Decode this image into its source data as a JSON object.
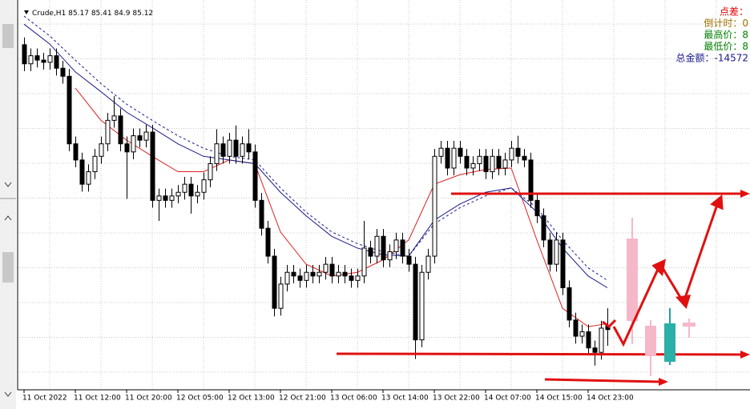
{
  "chart_data": {
    "type": "candlestick",
    "symbol": "Crude,H1",
    "ylim": [
      84.3,
      89.5
    ],
    "grid": true,
    "up_color": "#ffffff",
    "down_color": "#000000",
    "categories": [
      "11 Oct 2022",
      null,
      null,
      null,
      null,
      null,
      null,
      null,
      "11 Oct 12:00",
      null,
      null,
      null,
      null,
      null,
      null,
      null,
      "11 Oct 20:00",
      null,
      null,
      null,
      null,
      null,
      null,
      null,
      "12 Oct 05:00",
      null,
      null,
      null,
      null,
      null,
      null,
      null,
      "12 Oct 13:00",
      null,
      null,
      null,
      null,
      null,
      null,
      null,
      "12 Oct 21:00",
      null,
      null,
      null,
      null,
      null,
      null,
      null,
      "13 Oct 06:00",
      null,
      null,
      null,
      null,
      null,
      null,
      null,
      "13 Oct 14:00",
      null,
      null,
      null,
      null,
      null,
      null,
      null,
      "13 Oct 22:00",
      null,
      null,
      null,
      null,
      null,
      null,
      null,
      "14 Oct 07:00",
      null,
      null,
      null,
      null,
      null,
      null,
      null,
      "14 Oct 15:00",
      null,
      null,
      null,
      null,
      null,
      null,
      null,
      "14 Oct 23:00",
      null,
      null,
      null
    ],
    "ohlc": [
      [
        89.0,
        89.1,
        88.64,
        88.74
      ],
      [
        88.74,
        88.95,
        88.64,
        88.85
      ],
      [
        88.85,
        88.95,
        88.69,
        88.79
      ],
      [
        88.79,
        88.89,
        88.66,
        88.76
      ],
      [
        88.76,
        88.95,
        88.66,
        88.85
      ],
      [
        88.85,
        88.95,
        88.58,
        88.68
      ],
      [
        88.68,
        88.78,
        88.47,
        88.57
      ],
      [
        88.57,
        88.67,
        87.55,
        87.65
      ],
      [
        87.65,
        87.75,
        87.33,
        87.43
      ],
      [
        87.43,
        87.53,
        87.0,
        87.1
      ],
      [
        87.1,
        87.37,
        87.0,
        87.27
      ],
      [
        87.27,
        87.58,
        87.17,
        87.48
      ],
      [
        87.48,
        87.75,
        87.38,
        87.65
      ],
      [
        87.65,
        88.07,
        87.55,
        87.97
      ],
      [
        87.97,
        88.3,
        87.87,
        88.03
      ],
      [
        88.03,
        88.13,
        87.55,
        87.65
      ],
      [
        87.65,
        87.75,
        86.9,
        87.54
      ],
      [
        87.54,
        87.86,
        87.44,
        87.76
      ],
      [
        87.76,
        87.86,
        87.6,
        87.7
      ],
      [
        87.7,
        87.91,
        87.6,
        87.81
      ],
      [
        87.81,
        87.91,
        86.78,
        86.88
      ],
      [
        86.88,
        87.04,
        86.6,
        86.94
      ],
      [
        86.94,
        87.04,
        86.78,
        86.88
      ],
      [
        86.88,
        87.04,
        86.78,
        86.94
      ],
      [
        86.94,
        87.09,
        86.84,
        86.99
      ],
      [
        86.99,
        87.2,
        86.89,
        87.1
      ],
      [
        87.1,
        87.2,
        86.7,
        86.94
      ],
      [
        86.94,
        87.09,
        86.84,
        86.99
      ],
      [
        86.99,
        87.26,
        86.89,
        87.16
      ],
      [
        87.16,
        87.48,
        87.06,
        87.38
      ],
      [
        87.38,
        87.85,
        87.28,
        87.65
      ],
      [
        87.65,
        87.75,
        87.38,
        87.48
      ],
      [
        87.48,
        87.8,
        87.38,
        87.7
      ],
      [
        87.7,
        87.9,
        87.38,
        87.48
      ],
      [
        87.48,
        87.75,
        87.38,
        87.65
      ],
      [
        87.65,
        87.85,
        87.44,
        87.54
      ],
      [
        87.54,
        87.64,
        86.78,
        86.88
      ],
      [
        86.88,
        86.98,
        86.4,
        86.5
      ],
      [
        86.5,
        86.6,
        86.02,
        86.12
      ],
      [
        86.12,
        86.22,
        85.3,
        85.41
      ],
      [
        85.41,
        85.84,
        85.31,
        85.74
      ],
      [
        85.74,
        86.0,
        85.64,
        85.9
      ],
      [
        85.9,
        86.0,
        85.75,
        85.85
      ],
      [
        85.85,
        85.95,
        85.69,
        85.79
      ],
      [
        85.79,
        86.0,
        85.69,
        85.9
      ],
      [
        85.9,
        86.0,
        85.75,
        85.85
      ],
      [
        85.85,
        86.0,
        85.75,
        85.9
      ],
      [
        85.9,
        86.11,
        85.8,
        86.01
      ],
      [
        86.01,
        86.11,
        85.75,
        85.85
      ],
      [
        85.85,
        86.0,
        85.75,
        85.9
      ],
      [
        85.9,
        86.0,
        85.75,
        85.85
      ],
      [
        85.85,
        85.95,
        85.69,
        85.79
      ],
      [
        85.79,
        85.95,
        85.69,
        85.85
      ],
      [
        85.85,
        86.6,
        85.75,
        86.23
      ],
      [
        86.23,
        86.33,
        86.02,
        86.12
      ],
      [
        86.12,
        86.49,
        86.02,
        86.39
      ],
      [
        86.39,
        86.49,
        85.97,
        86.07
      ],
      [
        86.07,
        86.28,
        85.97,
        86.18
      ],
      [
        86.18,
        86.44,
        86.08,
        86.34
      ],
      [
        86.34,
        86.44,
        86.02,
        86.12
      ],
      [
        86.12,
        86.22,
        85.91,
        86.01
      ],
      [
        86.01,
        86.11,
        84.72,
        84.98
      ],
      [
        84.98,
        86.0,
        84.88,
        85.9
      ],
      [
        85.9,
        86.22,
        85.8,
        86.12
      ],
      [
        86.12,
        87.58,
        86.02,
        87.48
      ],
      [
        87.48,
        87.69,
        87.38,
        87.59
      ],
      [
        87.59,
        87.69,
        87.22,
        87.32
      ],
      [
        87.32,
        87.69,
        87.22,
        87.59
      ],
      [
        87.59,
        87.69,
        87.38,
        87.48
      ],
      [
        87.48,
        87.58,
        87.22,
        87.32
      ],
      [
        87.32,
        87.48,
        87.22,
        87.38
      ],
      [
        87.38,
        87.58,
        87.28,
        87.48
      ],
      [
        87.48,
        87.58,
        87.17,
        87.27
      ],
      [
        87.27,
        87.58,
        87.17,
        87.48
      ],
      [
        87.48,
        87.58,
        87.22,
        87.32
      ],
      [
        87.32,
        87.53,
        87.22,
        87.43
      ],
      [
        87.43,
        87.69,
        87.33,
        87.59
      ],
      [
        87.59,
        87.76,
        87.38,
        87.48
      ],
      [
        87.48,
        87.58,
        87.33,
        87.43
      ],
      [
        87.43,
        87.53,
        86.78,
        86.88
      ],
      [
        86.88,
        86.98,
        86.57,
        86.67
      ],
      [
        86.67,
        86.77,
        86.24,
        86.34
      ],
      [
        86.34,
        86.44,
        85.91,
        86.01
      ],
      [
        86.01,
        86.44,
        85.91,
        86.34
      ],
      [
        86.34,
        86.44,
        85.59,
        85.69
      ],
      [
        85.69,
        85.79,
        85.15,
        85.25
      ],
      [
        85.25,
        85.35,
        84.93,
        85.03
      ],
      [
        85.03,
        85.19,
        84.93,
        85.09
      ],
      [
        85.09,
        85.19,
        84.77,
        84.87
      ],
      [
        84.87,
        84.97,
        84.63,
        84.81
      ],
      [
        84.81,
        85.24,
        84.71,
        85.14
      ],
      [
        85.17,
        85.41,
        84.9,
        85.12
      ]
    ],
    "lines": [
      {
        "color": "#e02020",
        "dash": false,
        "x": [
          8,
          12,
          16,
          20,
          24,
          28,
          32,
          36,
          40,
          44,
          48,
          52,
          56,
          60,
          64,
          68,
          72,
          76,
          80,
          84,
          88,
          91
        ],
        "values": [
          88.41,
          87.97,
          87.7,
          87.48,
          87.27,
          87.27,
          87.43,
          87.38,
          86.45,
          86.01,
          85.85,
          85.9,
          86.07,
          86.34,
          87.1,
          87.23,
          87.3,
          87.32,
          86.34,
          85.41,
          85.16,
          85.2
        ]
      },
      {
        "color": "#1a1a8c",
        "dash": false,
        "x": [
          0,
          4,
          8,
          12,
          16,
          20,
          24,
          28,
          32,
          36,
          40,
          44,
          48,
          52,
          56,
          60,
          64,
          68,
          72,
          76,
          80,
          84,
          88,
          91
        ],
        "values": [
          89.28,
          89.01,
          88.63,
          88.36,
          88.08,
          87.87,
          87.65,
          87.48,
          87.43,
          87.38,
          86.99,
          86.67,
          86.39,
          86.23,
          86.14,
          86.12,
          86.61,
          86.83,
          86.99,
          87.05,
          86.72,
          86.23,
          85.85,
          85.69
        ]
      },
      {
        "color": "#1a1a8c",
        "dash": true,
        "x": [
          0,
          4,
          8,
          12,
          16,
          20,
          24,
          28,
          32,
          36,
          40,
          44,
          48,
          52,
          56,
          60,
          64,
          68,
          72,
          76,
          80,
          84,
          88,
          91
        ],
        "values": [
          89.39,
          89.12,
          88.79,
          88.47,
          88.19,
          87.97,
          87.76,
          87.59,
          87.48,
          87.43,
          87.05,
          86.72,
          86.45,
          86.29,
          86.18,
          86.12,
          86.56,
          86.78,
          86.94,
          87.05,
          86.78,
          86.34,
          85.96,
          85.79
        ]
      }
    ],
    "info": [
      {
        "text": "点差：",
        "color": "#e00000"
      },
      {
        "text": "倒计时：0",
        "color": "#a07000"
      },
      {
        "text": "最高价：8",
        "color": "#008000"
      },
      {
        "text": "最低价：8",
        "color": "#008000"
      },
      {
        "text": "总金额：-14572",
        "color": "#1a1a8c"
      }
    ]
  }
}
